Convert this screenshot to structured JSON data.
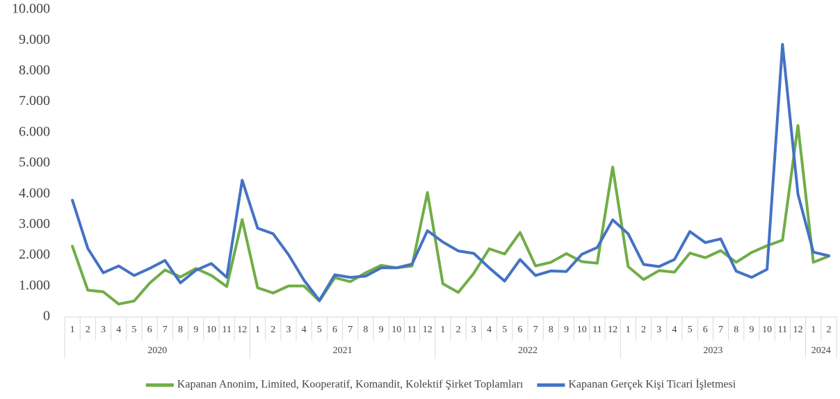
{
  "chart_data": {
    "type": "line",
    "category_groups": [
      {
        "name": "2020",
        "categories": [
          "1",
          "2",
          "3",
          "4",
          "5",
          "6",
          "7",
          "8",
          "9",
          "10",
          "11",
          "12"
        ]
      },
      {
        "name": "2021",
        "categories": [
          "1",
          "2",
          "3",
          "4",
          "5",
          "6",
          "7",
          "8",
          "9",
          "10",
          "11",
          "12"
        ]
      },
      {
        "name": "2022",
        "categories": [
          "1",
          "2",
          "3",
          "4",
          "5",
          "6",
          "7",
          "8",
          "9",
          "10",
          "11",
          "12"
        ]
      },
      {
        "name": "2023",
        "categories": [
          "1",
          "2",
          "3",
          "4",
          "5",
          "6",
          "7",
          "8",
          "9",
          "10",
          "11",
          "12"
        ]
      },
      {
        "name": "2024",
        "categories": [
          "1",
          "2"
        ]
      }
    ],
    "series": [
      {
        "name": "Kapanan Anonim, Limited, Kooperatif, Komandit, Kolektif Şirket Toplamları",
        "color": "#70ad47",
        "values": [
          2300,
          870,
          820,
          420,
          520,
          1100,
          1530,
          1300,
          1580,
          1350,
          990,
          3170,
          950,
          780,
          1010,
          1010,
          520,
          1280,
          1150,
          1440,
          1680,
          1600,
          1660,
          4050,
          1080,
          800,
          1420,
          2220,
          2050,
          2750,
          1660,
          1780,
          2060,
          1800,
          1750,
          4880,
          1640,
          1220,
          1510,
          1460,
          2080,
          1930,
          2160,
          1780,
          2100,
          2320,
          2500,
          6230,
          1780,
          1980
        ]
      },
      {
        "name": "Kapanan Gerçek Kişi Ticari İşletmesi",
        "color": "#4472c4",
        "values": [
          3800,
          2230,
          1440,
          1660,
          1350,
          1580,
          1840,
          1110,
          1520,
          1740,
          1290,
          4450,
          2890,
          2710,
          2030,
          1200,
          540,
          1370,
          1290,
          1330,
          1600,
          1600,
          1720,
          2810,
          2440,
          2150,
          2070,
          1600,
          1170,
          1870,
          1350,
          1500,
          1480,
          2040,
          2260,
          3160,
          2710,
          1710,
          1640,
          1870,
          2780,
          2420,
          2540,
          1490,
          1290,
          1550,
          8870,
          4000,
          2110,
          1990
        ]
      }
    ],
    "ylim": [
      0,
      10000
    ],
    "yticks": [
      0,
      {
        "value": 1000,
        "label": "1.000"
      },
      {
        "value": 2000,
        "label": "2.000"
      },
      {
        "value": 3000,
        "label": "3.000"
      },
      {
        "value": 4000,
        "label": "4.000"
      },
      {
        "value": 5000,
        "label": "5.000"
      },
      {
        "value": 6000,
        "label": "6.000"
      },
      {
        "value": 7000,
        "label": "7.000"
      },
      {
        "value": 8000,
        "label": "8.000"
      },
      {
        "value": 9000,
        "label": "9.000"
      },
      {
        "value": 10000,
        "label": "10.000"
      }
    ],
    "grid": false,
    "legend": "bottom"
  }
}
